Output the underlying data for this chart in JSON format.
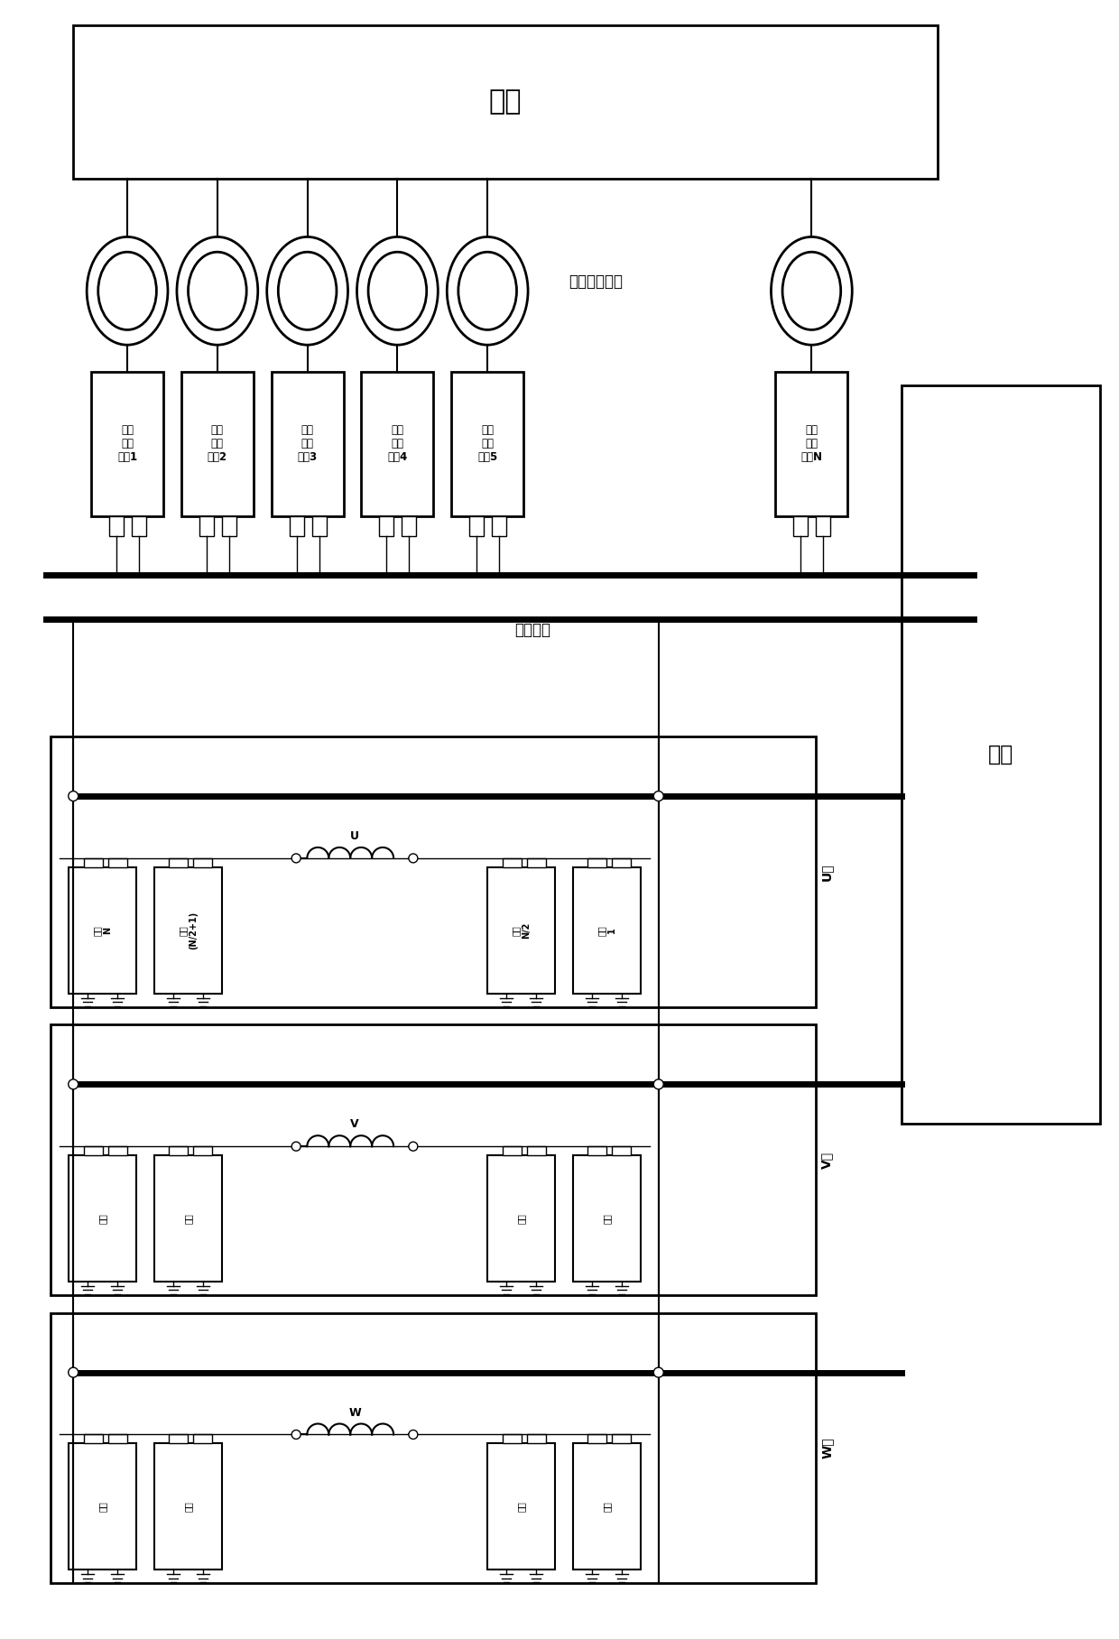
{
  "bg_color": "#ffffff",
  "line_color": "#000000",
  "title_shuidao": "水道",
  "label_shuijilfa": "水轮发电机组",
  "label_dc_bus": "直流母线",
  "label_grid": "电网",
  "rect_labels": [
    "高压\n整流\n拓扠1",
    "高压\n整流\n拓扠2",
    "高压\n整流\n拓扠3",
    "高压\n整流\n拓扠4",
    "高压\n整流\n拓扠5",
    "高压\n整流\n拓扠N"
  ],
  "u_left_labels": [
    "逆变\nN",
    "逆变\n(N/2+1)"
  ],
  "u_right_labels": [
    "逆变\nN/2",
    "逆变\n1"
  ],
  "phase_letters": [
    "U",
    "V",
    "W"
  ],
  "phase_labels": [
    "U相",
    "V相",
    "W相"
  ],
  "fig_width": 12.4,
  "fig_height": 18.16
}
